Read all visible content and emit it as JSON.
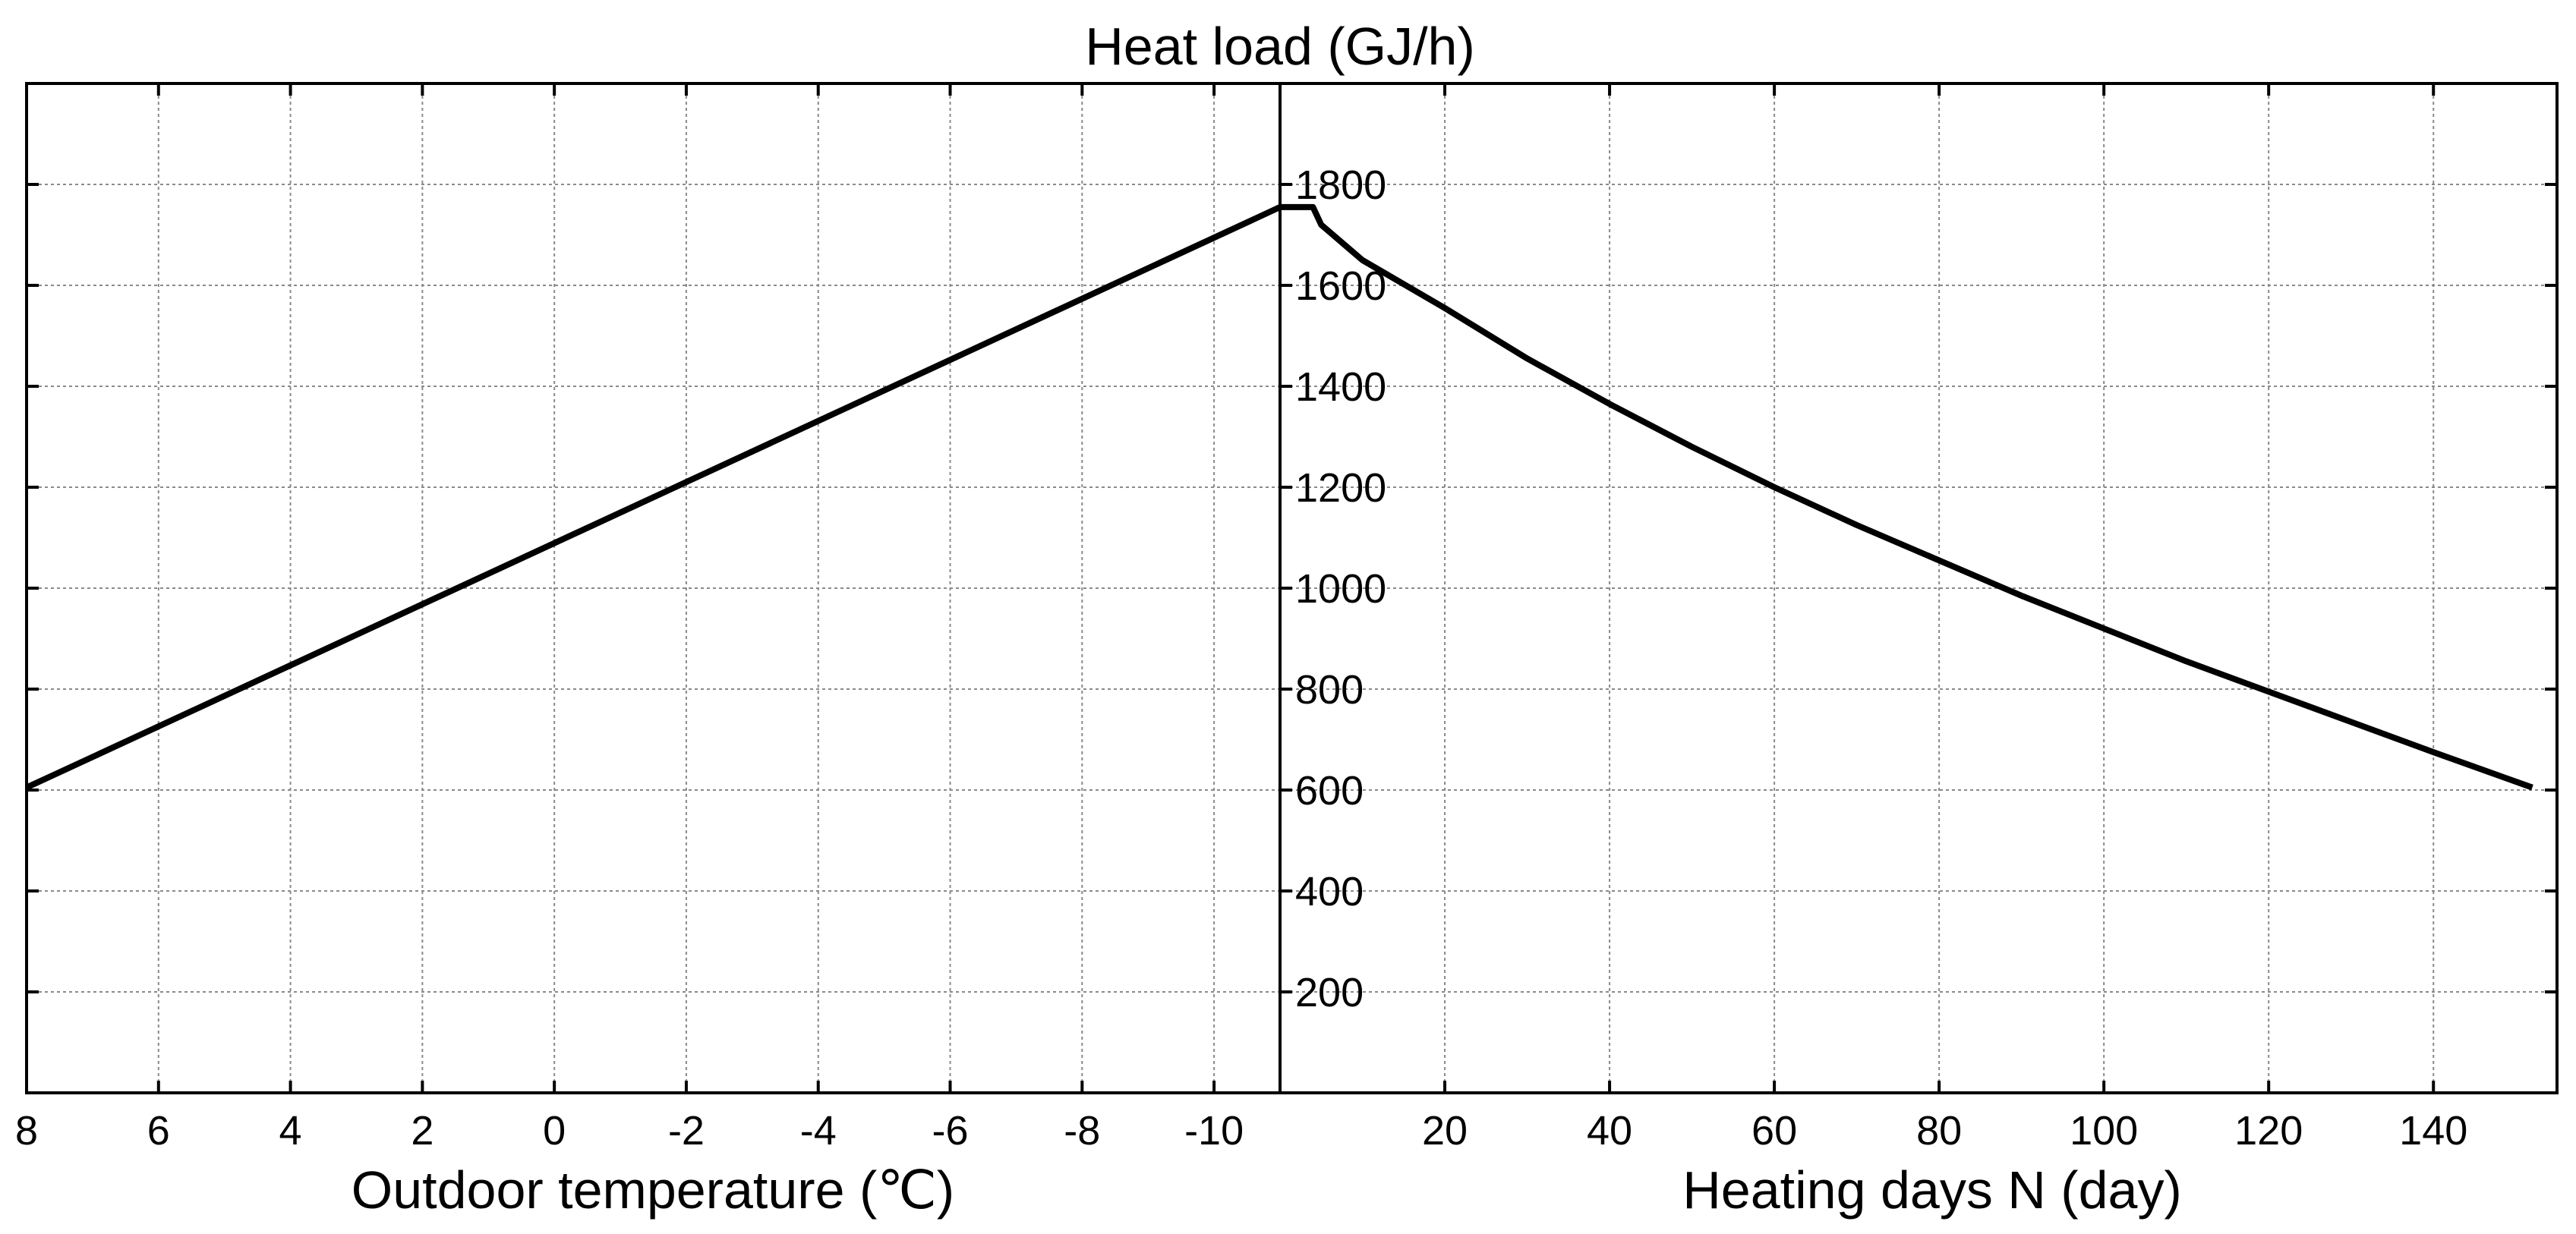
{
  "chart_data": [
    {
      "type": "line",
      "title": "Heat load (GJ/h)",
      "xlabel": "Outdoor temperature (℃)",
      "x_reversed": true,
      "xlim": [
        8,
        -11
      ],
      "ylim": [
        0,
        2000
      ],
      "xticks": [
        "8",
        "6",
        "4",
        "2",
        "0",
        "-2",
        "-4",
        "-6",
        "-8",
        "-10"
      ],
      "yticks": [
        "200",
        "400",
        "600",
        "800",
        "1000",
        "1200",
        "1400",
        "1600",
        "1800"
      ],
      "grid": true,
      "series": [
        {
          "x": [
            8,
            -11
          ],
          "y": [
            605,
            1755
          ]
        }
      ]
    },
    {
      "type": "line",
      "xlabel": "Heating days N (day)",
      "xlim": [
        0,
        155
      ],
      "ylim": [
        0,
        2000
      ],
      "xticks": [
        "20",
        "40",
        "60",
        "80",
        "100",
        "120",
        "140"
      ],
      "grid": true,
      "series": [
        {
          "x": [
            0,
            4,
            5,
            10,
            20,
            30,
            40,
            50,
            60,
            70,
            80,
            90,
            100,
            110,
            120,
            130,
            140,
            152
          ],
          "y": [
            1755,
            1755,
            1720,
            1650,
            1555,
            1455,
            1365,
            1280,
            1200,
            1125,
            1055,
            985,
            920,
            855,
            795,
            735,
            675,
            605
          ]
        }
      ]
    }
  ]
}
